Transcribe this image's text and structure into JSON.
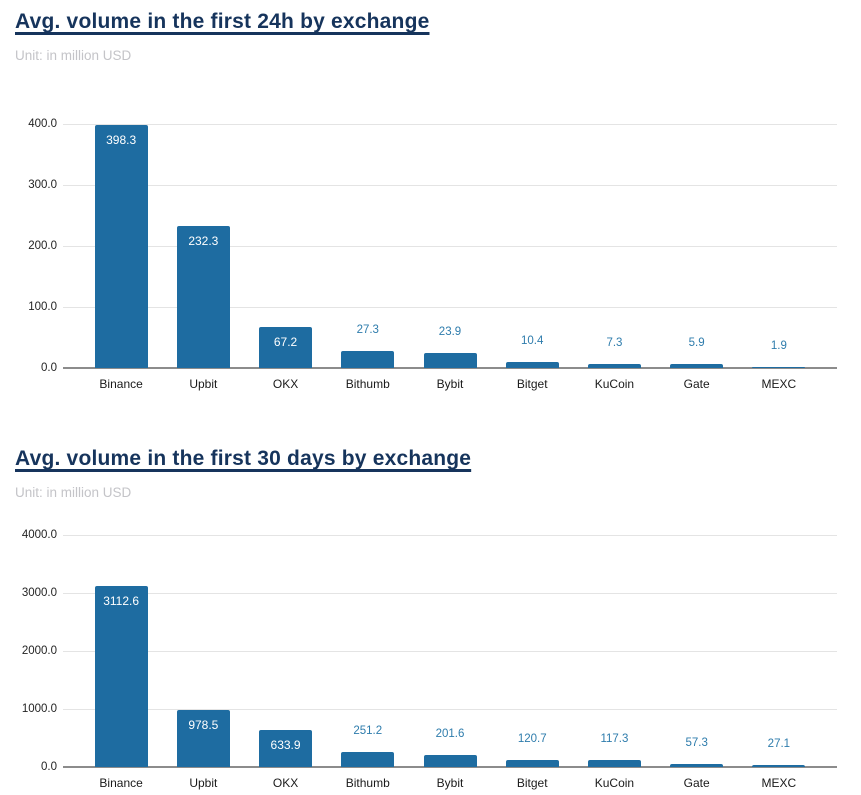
{
  "page": {
    "background": "#ffffff"
  },
  "colors": {
    "title": "#16345c",
    "subtitle": "#c4c4c8",
    "bar": "#1e6ca1",
    "grid": "#e4e4e4",
    "axis": "#8c8c8c",
    "ytick_text": "#242424",
    "xlabel_text": "#1a1a1a",
    "value_label_inside": "#ffffff",
    "value_label_outside": "#2e7cac"
  },
  "chart_data": [
    {
      "type": "bar",
      "title": "Avg. volume in the first 24h by exchange",
      "subtitle": "Unit: in million USD",
      "categories": [
        "Binance",
        "Upbit",
        "OKX",
        "Bithumb",
        "Bybit",
        "Bitget",
        "KuCoin",
        "Gate",
        "MEXC"
      ],
      "values": [
        398.3,
        232.3,
        67.2,
        27.3,
        23.9,
        10.4,
        7.3,
        5.9,
        1.9
      ],
      "ylim": [
        0,
        400
      ],
      "ytick_values": [
        0,
        100,
        200,
        300,
        400
      ],
      "ytick_labels": [
        "0.0",
        "100.0",
        "200.0",
        "300.0",
        "400.0"
      ],
      "grid": true,
      "legend": "none",
      "value_label_format": "one-decimal"
    },
    {
      "type": "bar",
      "title": "Avg. volume in the first 30 days by exchange",
      "subtitle": "Unit: in million USD",
      "categories": [
        "Binance",
        "Upbit",
        "OKX",
        "Bithumb",
        "Bybit",
        "Bitget",
        "KuCoin",
        "Gate",
        "MEXC"
      ],
      "values": [
        3112.6,
        978.5,
        633.9,
        251.2,
        201.6,
        120.7,
        117.3,
        57.3,
        27.1
      ],
      "ylim": [
        0,
        4000
      ],
      "ytick_values": [
        0,
        1000,
        2000,
        3000,
        4000
      ],
      "ytick_labels": [
        "0.0",
        "1000.0",
        "2000.0",
        "3000.0",
        "4000.0"
      ],
      "grid": true,
      "legend": "none",
      "value_label_format": "one-decimal"
    }
  ]
}
